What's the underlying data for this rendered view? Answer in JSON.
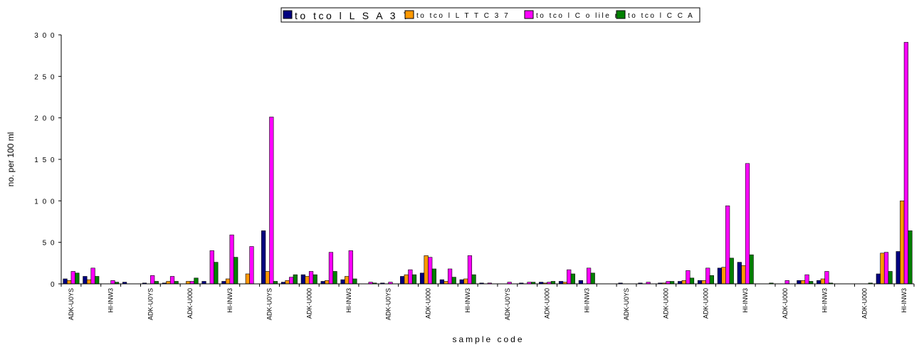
{
  "chart_data": {
    "type": "bar",
    "title": "",
    "xlabel": "sample code",
    "ylabel": "no. per 100 ml",
    "ylim": [
      0,
      300
    ],
    "yticks": [
      0,
      50,
      100,
      150,
      200,
      250,
      300
    ],
    "yticklabels": [
      "0",
      "5 0",
      "1 0 0",
      "1 5 0",
      "2 0 0",
      "2 5 0",
      "3 0 0"
    ],
    "grid": false,
    "legend_placement": "top",
    "categories": [
      "ADK-U0YS",
      "",
      "HI-INW3",
      "",
      "ADK-U0YS",
      "",
      "ADK-U000",
      "",
      "HI-INW3",
      "",
      "ADK-U0YS",
      "",
      "ADK-U000",
      "",
      "HI-INW3",
      "",
      "ADK-U0YS",
      "",
      "ADK-U000",
      "",
      "HI-INW3",
      "",
      "ADK-U0YS",
      "",
      "ADK-U000",
      "",
      "HI-INW3",
      "",
      "ADK-U0YS",
      "",
      "ADK-U000",
      "",
      "ADK-U000",
      "",
      "HI-INW3",
      "",
      "ADK-U000",
      "",
      "HI-INW3",
      "",
      "ADK-U000",
      "",
      "HI-INW3"
    ],
    "series": [
      {
        "name": "totcol LSA37",
        "legend_label": "to tco l L S A 3 7",
        "color": "#000080",
        "values": [
          6,
          9,
          0,
          2,
          1,
          1,
          0,
          3,
          3,
          0,
          64,
          2,
          11,
          3,
          5,
          0,
          1,
          9,
          13,
          5,
          5,
          1,
          0,
          1,
          2,
          3,
          4,
          0,
          1,
          1,
          1,
          3,
          4,
          19,
          26,
          0,
          0,
          4,
          4,
          0,
          0,
          12,
          39
        ]
      },
      {
        "name": "totcol LTTC37",
        "legend_label": "to tco l L T T C 3 7",
        "color": "#ff9900",
        "values": [
          4,
          5,
          0,
          0,
          0,
          3,
          3,
          0,
          6,
          12,
          15,
          4,
          9,
          4,
          9,
          0,
          0,
          11,
          34,
          3,
          6,
          0,
          0,
          0,
          1,
          2,
          0,
          0,
          0,
          0,
          1,
          4,
          4,
          20,
          22,
          0,
          0,
          4,
          6,
          0,
          0,
          37,
          100
        ]
      },
      {
        "name": "totcol Colilert",
        "legend_label": "to tco l C o lile rt",
        "color": "#ff00ff",
        "values": [
          15,
          19,
          4,
          0,
          10,
          9,
          3,
          40,
          59,
          45,
          201,
          8,
          15,
          38,
          40,
          2,
          2,
          17,
          32,
          18,
          34,
          1,
          2,
          2,
          2,
          17,
          19,
          0,
          0,
          2,
          3,
          16,
          19,
          94,
          145,
          0,
          4,
          11,
          15,
          0,
          0,
          38,
          291
        ]
      },
      {
        "name": "totcol CCA",
        "legend_label": "to tco l C C A",
        "color": "#008000",
        "values": [
          13,
          9,
          2,
          0,
          3,
          3,
          7,
          26,
          32,
          0,
          3,
          11,
          11,
          15,
          6,
          1,
          0,
          11,
          18,
          8,
          11,
          0,
          0,
          2,
          3,
          12,
          13,
          0,
          0,
          0,
          3,
          7,
          10,
          31,
          35,
          1,
          0,
          3,
          1,
          0,
          1,
          15,
          64
        ]
      }
    ]
  }
}
